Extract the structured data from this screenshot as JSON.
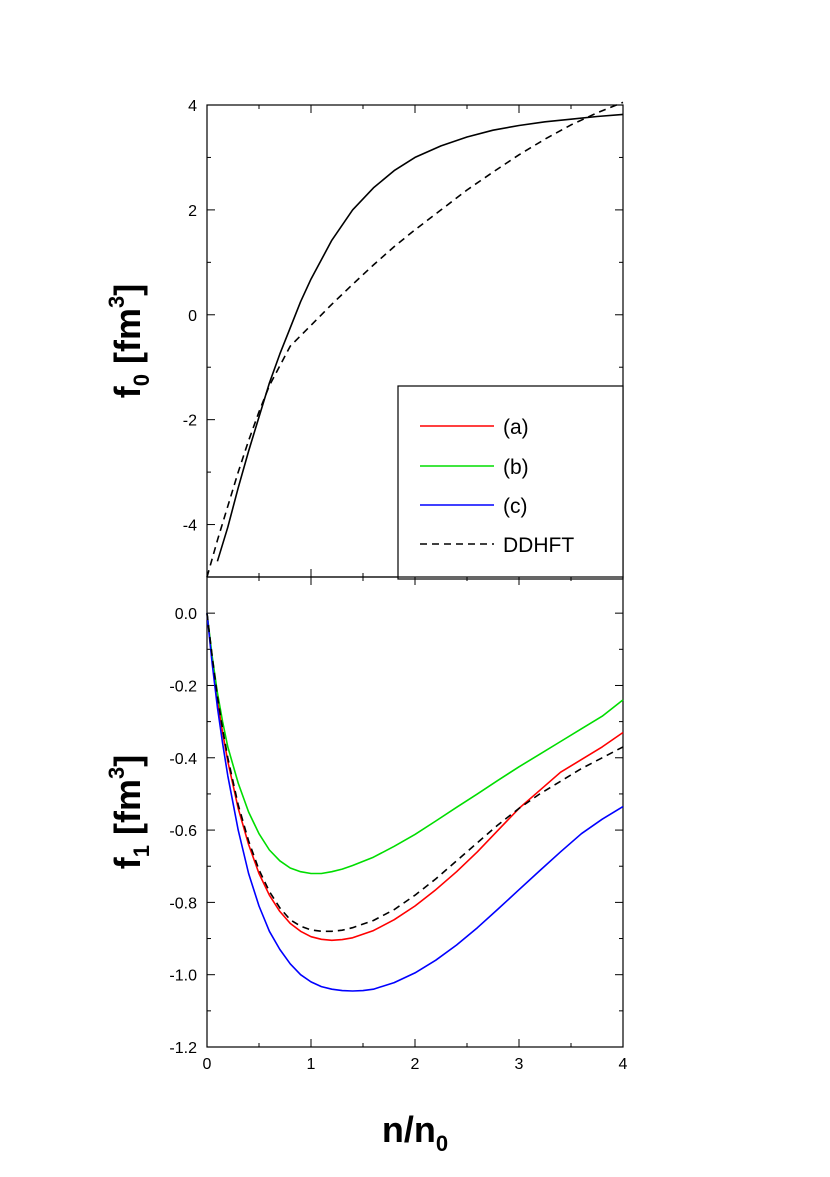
{
  "chart_data": [
    {
      "type": "line",
      "panel": "top",
      "ylabel": {
        "main": "f",
        "sub": "0",
        "rest": " [fm",
        "sup": "3",
        "close": "]"
      },
      "xlim": [
        0,
        4
      ],
      "ylim": [
        -5,
        4
      ],
      "yticks": [
        -4,
        -2,
        0,
        2,
        4
      ],
      "ytick_labels": [
        "-4",
        "-2",
        "0",
        "2",
        "4"
      ],
      "series": [
        {
          "name": "solid",
          "color": "#000000",
          "dash": "none",
          "x": [
            0.1,
            0.2,
            0.3,
            0.4,
            0.5,
            0.6,
            0.7,
            0.8,
            0.9,
            1.0,
            1.2,
            1.4,
            1.6,
            1.8,
            2.0,
            2.25,
            2.5,
            2.75,
            3.0,
            3.25,
            3.5,
            3.75,
            4.0
          ],
          "y": [
            -4.7,
            -4.05,
            -3.3,
            -2.6,
            -1.95,
            -1.3,
            -0.75,
            -0.25,
            0.25,
            0.68,
            1.42,
            2.0,
            2.42,
            2.75,
            3.0,
            3.22,
            3.39,
            3.52,
            3.61,
            3.68,
            3.73,
            3.78,
            3.82
          ]
        },
        {
          "name": "DDHFT",
          "color": "#000000",
          "dash": "7,5",
          "x": [
            0.0,
            0.1,
            0.2,
            0.3,
            0.4,
            0.5,
            0.6,
            0.8,
            1.0,
            1.2,
            1.4,
            1.6,
            1.8,
            2.0,
            2.25,
            2.5,
            2.75,
            3.0,
            3.25,
            3.5,
            3.75,
            4.0
          ],
          "y": [
            -5.0,
            -4.3,
            -3.65,
            -3.0,
            -2.4,
            -1.85,
            -1.35,
            -0.6,
            -0.2,
            0.2,
            0.58,
            0.95,
            1.3,
            1.62,
            2.0,
            2.38,
            2.72,
            3.05,
            3.35,
            3.62,
            3.85,
            4.05
          ]
        }
      ]
    },
    {
      "type": "line",
      "panel": "bottom",
      "xlabel": {
        "main": "n/n",
        "sub": "0"
      },
      "ylabel": {
        "main": "f",
        "sub": "1",
        "rest": " [fm",
        "sup": "3",
        "close": "]"
      },
      "xlim": [
        0,
        4
      ],
      "ylim": [
        -1.2,
        0.1
      ],
      "xticks": [
        0,
        1,
        2,
        3,
        4
      ],
      "xtick_labels": [
        "0",
        "1",
        "2",
        "3",
        "4"
      ],
      "yticks": [
        -1.2,
        -1.0,
        -0.8,
        -0.6,
        -0.4,
        -0.2,
        0.0
      ],
      "ytick_labels": [
        "-1.2",
        "-1.0",
        "-0.8",
        "-0.6",
        "-0.4",
        "-0.2",
        "0.0"
      ],
      "series": [
        {
          "name": "(a)",
          "color": "#ff0000",
          "dash": "none",
          "x": [
            0.0,
            0.05,
            0.1,
            0.15,
            0.2,
            0.3,
            0.4,
            0.5,
            0.6,
            0.7,
            0.8,
            0.9,
            1.0,
            1.1,
            1.2,
            1.3,
            1.4,
            1.6,
            1.8,
            2.0,
            2.2,
            2.4,
            2.6,
            2.8,
            3.0,
            3.2,
            3.4,
            3.6,
            3.8,
            4.0
          ],
          "y": [
            0.0,
            -0.13,
            -0.24,
            -0.33,
            -0.41,
            -0.54,
            -0.64,
            -0.72,
            -0.78,
            -0.825,
            -0.858,
            -0.88,
            -0.895,
            -0.902,
            -0.905,
            -0.903,
            -0.898,
            -0.878,
            -0.848,
            -0.81,
            -0.765,
            -0.715,
            -0.66,
            -0.6,
            -0.54,
            -0.49,
            -0.44,
            -0.405,
            -0.37,
            -0.33
          ]
        },
        {
          "name": "(b)",
          "color": "#00dd00",
          "dash": "none",
          "x": [
            0.0,
            0.05,
            0.1,
            0.15,
            0.2,
            0.3,
            0.4,
            0.5,
            0.6,
            0.7,
            0.8,
            0.9,
            1.0,
            1.1,
            1.2,
            1.3,
            1.4,
            1.6,
            1.8,
            2.0,
            2.2,
            2.4,
            2.6,
            2.8,
            3.0,
            3.2,
            3.4,
            3.6,
            3.8,
            4.0
          ],
          "y": [
            0.0,
            -0.12,
            -0.22,
            -0.3,
            -0.37,
            -0.47,
            -0.55,
            -0.61,
            -0.655,
            -0.685,
            -0.705,
            -0.715,
            -0.72,
            -0.72,
            -0.715,
            -0.708,
            -0.698,
            -0.675,
            -0.645,
            -0.612,
            -0.575,
            -0.537,
            -0.5,
            -0.462,
            -0.425,
            -0.39,
            -0.355,
            -0.32,
            -0.285,
            -0.24
          ]
        },
        {
          "name": "(c)",
          "color": "#0000ff",
          "dash": "none",
          "x": [
            0.0,
            0.05,
            0.1,
            0.15,
            0.2,
            0.3,
            0.4,
            0.5,
            0.6,
            0.7,
            0.8,
            0.9,
            1.0,
            1.1,
            1.2,
            1.3,
            1.4,
            1.5,
            1.6,
            1.8,
            2.0,
            2.2,
            2.4,
            2.6,
            2.8,
            3.0,
            3.2,
            3.4,
            3.6,
            3.8,
            4.0
          ],
          "y": [
            0.0,
            -0.14,
            -0.26,
            -0.36,
            -0.45,
            -0.6,
            -0.72,
            -0.81,
            -0.88,
            -0.93,
            -0.97,
            -1.0,
            -1.02,
            -1.033,
            -1.04,
            -1.044,
            -1.045,
            -1.044,
            -1.04,
            -1.022,
            -0.995,
            -0.96,
            -0.918,
            -0.87,
            -0.818,
            -0.765,
            -0.712,
            -0.66,
            -0.61,
            -0.57,
            -0.535
          ]
        },
        {
          "name": "DDHFT",
          "color": "#000000",
          "dash": "7,5",
          "x": [
            0.0,
            0.05,
            0.1,
            0.15,
            0.2,
            0.3,
            0.4,
            0.5,
            0.6,
            0.7,
            0.8,
            0.9,
            1.0,
            1.1,
            1.2,
            1.3,
            1.4,
            1.6,
            1.8,
            2.0,
            2.2,
            2.4,
            2.6,
            2.8,
            3.0,
            3.2,
            3.4,
            3.6,
            3.8,
            4.0
          ],
          "y": [
            0.0,
            -0.12,
            -0.23,
            -0.32,
            -0.4,
            -0.53,
            -0.63,
            -0.71,
            -0.77,
            -0.815,
            -0.848,
            -0.866,
            -0.876,
            -0.88,
            -0.88,
            -0.877,
            -0.87,
            -0.85,
            -0.82,
            -0.78,
            -0.735,
            -0.685,
            -0.635,
            -0.585,
            -0.54,
            -0.5,
            -0.465,
            -0.43,
            -0.4,
            -0.37
          ]
        }
      ]
    }
  ],
  "legend": {
    "placement": "lower-right of top panel",
    "entries": [
      {
        "label": "(a)",
        "color": "#ff0000",
        "dash": "none"
      },
      {
        "label": "(b)",
        "color": "#00dd00",
        "dash": "none"
      },
      {
        "label": "(c)",
        "color": "#0000ff",
        "dash": "none"
      },
      {
        "label": "DDHFT",
        "color": "#000000",
        "dash": "7,5"
      }
    ]
  }
}
